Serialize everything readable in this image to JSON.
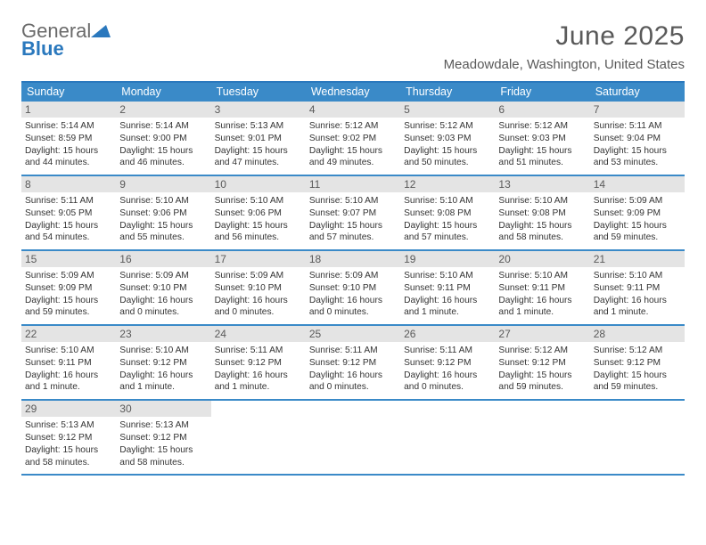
{
  "brand": {
    "general": "General",
    "blue": "Blue"
  },
  "title": "June 2025",
  "location": "Meadowdale, Washington, United States",
  "colors": {
    "header_bar": "#3a8ac8",
    "rule": "#2a78bd",
    "daynum_bg": "#e4e4e4",
    "text": "#333333",
    "muted": "#5a5a5a",
    "white": "#ffffff"
  },
  "day_headers": [
    "Sunday",
    "Monday",
    "Tuesday",
    "Wednesday",
    "Thursday",
    "Friday",
    "Saturday"
  ],
  "days": [
    {
      "n": "1",
      "sunrise": "5:14 AM",
      "sunset": "8:59 PM",
      "daylight": "15 hours and 44 minutes."
    },
    {
      "n": "2",
      "sunrise": "5:14 AM",
      "sunset": "9:00 PM",
      "daylight": "15 hours and 46 minutes."
    },
    {
      "n": "3",
      "sunrise": "5:13 AM",
      "sunset": "9:01 PM",
      "daylight": "15 hours and 47 minutes."
    },
    {
      "n": "4",
      "sunrise": "5:12 AM",
      "sunset": "9:02 PM",
      "daylight": "15 hours and 49 minutes."
    },
    {
      "n": "5",
      "sunrise": "5:12 AM",
      "sunset": "9:03 PM",
      "daylight": "15 hours and 50 minutes."
    },
    {
      "n": "6",
      "sunrise": "5:12 AM",
      "sunset": "9:03 PM",
      "daylight": "15 hours and 51 minutes."
    },
    {
      "n": "7",
      "sunrise": "5:11 AM",
      "sunset": "9:04 PM",
      "daylight": "15 hours and 53 minutes."
    },
    {
      "n": "8",
      "sunrise": "5:11 AM",
      "sunset": "9:05 PM",
      "daylight": "15 hours and 54 minutes."
    },
    {
      "n": "9",
      "sunrise": "5:10 AM",
      "sunset": "9:06 PM",
      "daylight": "15 hours and 55 minutes."
    },
    {
      "n": "10",
      "sunrise": "5:10 AM",
      "sunset": "9:06 PM",
      "daylight": "15 hours and 56 minutes."
    },
    {
      "n": "11",
      "sunrise": "5:10 AM",
      "sunset": "9:07 PM",
      "daylight": "15 hours and 57 minutes."
    },
    {
      "n": "12",
      "sunrise": "5:10 AM",
      "sunset": "9:08 PM",
      "daylight": "15 hours and 57 minutes."
    },
    {
      "n": "13",
      "sunrise": "5:10 AM",
      "sunset": "9:08 PM",
      "daylight": "15 hours and 58 minutes."
    },
    {
      "n": "14",
      "sunrise": "5:09 AM",
      "sunset": "9:09 PM",
      "daylight": "15 hours and 59 minutes."
    },
    {
      "n": "15",
      "sunrise": "5:09 AM",
      "sunset": "9:09 PM",
      "daylight": "15 hours and 59 minutes."
    },
    {
      "n": "16",
      "sunrise": "5:09 AM",
      "sunset": "9:10 PM",
      "daylight": "16 hours and 0 minutes."
    },
    {
      "n": "17",
      "sunrise": "5:09 AM",
      "sunset": "9:10 PM",
      "daylight": "16 hours and 0 minutes."
    },
    {
      "n": "18",
      "sunrise": "5:09 AM",
      "sunset": "9:10 PM",
      "daylight": "16 hours and 0 minutes."
    },
    {
      "n": "19",
      "sunrise": "5:10 AM",
      "sunset": "9:11 PM",
      "daylight": "16 hours and 1 minute."
    },
    {
      "n": "20",
      "sunrise": "5:10 AM",
      "sunset": "9:11 PM",
      "daylight": "16 hours and 1 minute."
    },
    {
      "n": "21",
      "sunrise": "5:10 AM",
      "sunset": "9:11 PM",
      "daylight": "16 hours and 1 minute."
    },
    {
      "n": "22",
      "sunrise": "5:10 AM",
      "sunset": "9:11 PM",
      "daylight": "16 hours and 1 minute."
    },
    {
      "n": "23",
      "sunrise": "5:10 AM",
      "sunset": "9:12 PM",
      "daylight": "16 hours and 1 minute."
    },
    {
      "n": "24",
      "sunrise": "5:11 AM",
      "sunset": "9:12 PM",
      "daylight": "16 hours and 1 minute."
    },
    {
      "n": "25",
      "sunrise": "5:11 AM",
      "sunset": "9:12 PM",
      "daylight": "16 hours and 0 minutes."
    },
    {
      "n": "26",
      "sunrise": "5:11 AM",
      "sunset": "9:12 PM",
      "daylight": "16 hours and 0 minutes."
    },
    {
      "n": "27",
      "sunrise": "5:12 AM",
      "sunset": "9:12 PM",
      "daylight": "15 hours and 59 minutes."
    },
    {
      "n": "28",
      "sunrise": "5:12 AM",
      "sunset": "9:12 PM",
      "daylight": "15 hours and 59 minutes."
    },
    {
      "n": "29",
      "sunrise": "5:13 AM",
      "sunset": "9:12 PM",
      "daylight": "15 hours and 58 minutes."
    },
    {
      "n": "30",
      "sunrise": "5:13 AM",
      "sunset": "9:12 PM",
      "daylight": "15 hours and 58 minutes."
    }
  ],
  "labels": {
    "sunrise": "Sunrise: ",
    "sunset": "Sunset: ",
    "daylight": "Daylight: "
  },
  "layout": {
    "start_weekday_index": 0,
    "total_days": 30,
    "cols": 7
  }
}
